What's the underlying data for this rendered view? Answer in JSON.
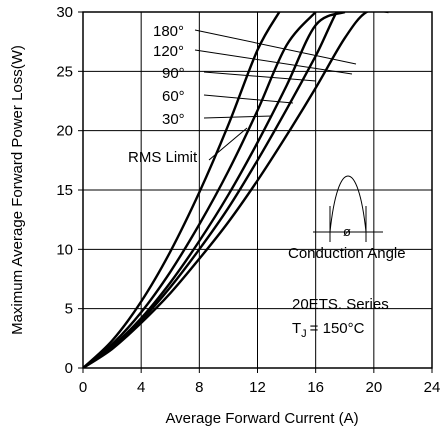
{
  "chart_data": {
    "type": "line",
    "title": "",
    "xlabel": "Average Forward Current (A)",
    "ylabel": "Maximum Average Forward Power Loss(W)",
    "xlim": [
      0,
      24
    ],
    "ylim": [
      0,
      30
    ],
    "x_ticks": [
      "0",
      "4",
      "8",
      "12",
      "16",
      "20",
      "24"
    ],
    "y_ticks": [
      "0",
      "5",
      "10",
      "15",
      "20",
      "25",
      "30"
    ],
    "grid": true,
    "series": [
      {
        "name": "180°",
        "x": [
          0,
          2,
          4,
          6,
          8,
          10,
          12,
          14,
          16,
          18,
          19.5,
          21
        ],
        "y": [
          0,
          1.6,
          3.8,
          6.3,
          9.2,
          12.3,
          15.8,
          19.6,
          23.6,
          27.8,
          30.0,
          30.0
        ]
      },
      {
        "name": "120°",
        "x": [
          0,
          2,
          4,
          6,
          8,
          10,
          12,
          14,
          16,
          18,
          19.5
        ],
        "y": [
          0,
          1.7,
          4.0,
          6.8,
          10.0,
          13.5,
          17.5,
          21.8,
          26.3,
          31.0,
          30.0
        ]
      },
      {
        "name": "90°",
        "x": [
          0,
          2,
          4,
          6,
          8,
          10,
          12,
          14,
          16,
          18
        ],
        "y": [
          0,
          1.8,
          4.2,
          7.2,
          10.7,
          14.6,
          19.0,
          23.8,
          28.9,
          30.0
        ]
      },
      {
        "name": "60°",
        "x": [
          0,
          2,
          4,
          6,
          8,
          10,
          12,
          14,
          16
        ],
        "y": [
          0,
          2.0,
          4.7,
          8.1,
          12.1,
          16.6,
          21.7,
          27.2,
          30.0
        ]
      },
      {
        "name": "30°",
        "x": [
          0,
          2,
          4,
          6,
          8,
          10,
          12,
          13.5
        ],
        "y": [
          0,
          2.3,
          5.6,
          9.8,
          14.8,
          20.5,
          26.8,
          30.0
        ]
      }
    ],
    "annotations": {
      "rms_limit": "RMS Limit",
      "conduction_angle": "Conduction Angle",
      "phi_symbol": "ø",
      "series_name": "20ETS. Series",
      "tj_prefix": "T",
      "tj_sub": "J",
      "tj_value": "= 150°C"
    }
  }
}
